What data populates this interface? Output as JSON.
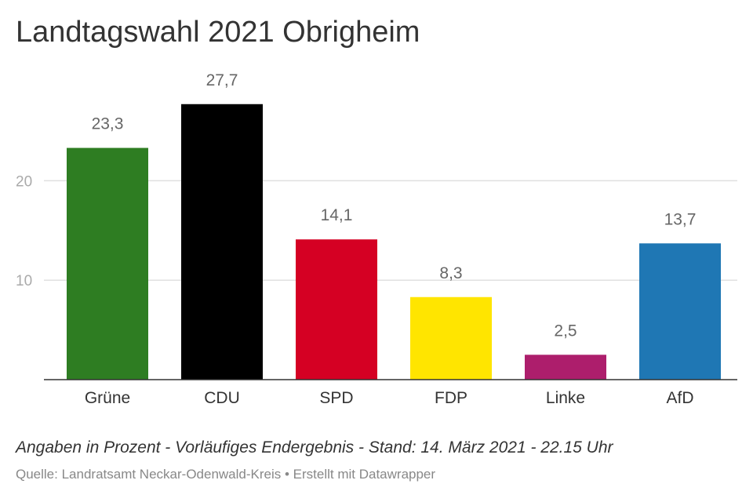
{
  "title": "Landtagswahl 2021 Obrigheim",
  "notes": "Angaben in Prozent - Vorläufiges Endergebnis - Stand: 14. März 2021 - 22.15 Uhr",
  "source": "Quelle: Landratsamt Neckar-Odenwald-Kreis • Erstellt mit Datawrapper",
  "chart_data": {
    "type": "bar",
    "categories": [
      "Grüne",
      "CDU",
      "SPD",
      "FDP",
      "Linke",
      "AfD"
    ],
    "values": [
      23.3,
      27.7,
      14.1,
      8.3,
      2.5,
      13.7
    ],
    "value_labels": [
      "23,3",
      "27,7",
      "14,1",
      "8,3",
      "2,5",
      "13,7"
    ],
    "colors": [
      "#2e7d22",
      "#000000",
      "#d50023",
      "#ffe500",
      "#ad1e6c",
      "#1f77b4"
    ],
    "yticks": [
      10,
      20
    ],
    "ylim": [
      0,
      30
    ],
    "grid": true,
    "legend": "none",
    "xlabel": "",
    "ylabel": ""
  }
}
